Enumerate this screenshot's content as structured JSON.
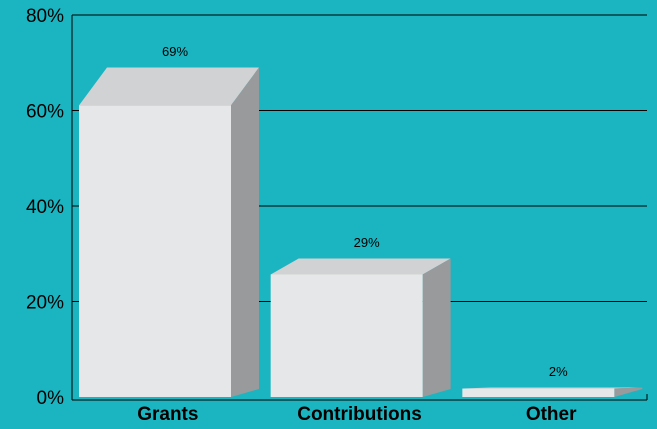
{
  "chart_data": {
    "type": "bar3d",
    "categories": [
      "Grants",
      "Contributions",
      "Other"
    ],
    "values": [
      69,
      29,
      2
    ],
    "value_labels": [
      "69%",
      "29%",
      "2%"
    ],
    "ylim": [
      0,
      80
    ],
    "yticks": [
      {
        "value": 0,
        "label": "0%"
      },
      {
        "value": 20,
        "label": "20%"
      },
      {
        "value": 40,
        "label": "40%"
      },
      {
        "value": 60,
        "label": "60%"
      },
      {
        "value": 80,
        "label": "80%"
      }
    ],
    "grid": true,
    "background": "#1ab5c1",
    "colors": {
      "front": "#e6e7e8",
      "top": "#d1d2d3",
      "side": "#999a9c"
    }
  }
}
